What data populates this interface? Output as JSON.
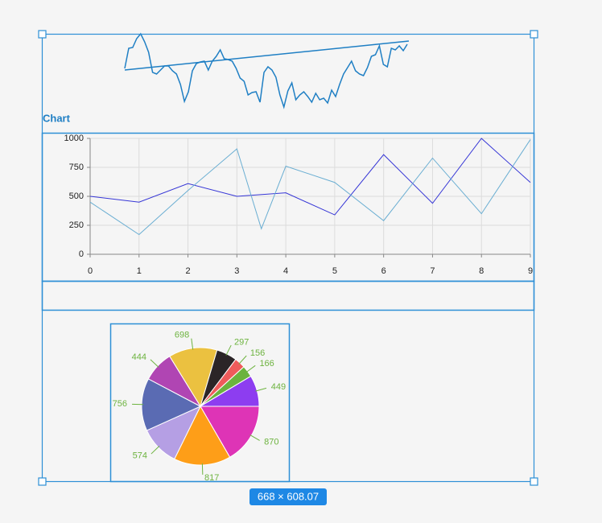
{
  "chart_label": "Chart",
  "size_badge": "668 × 608.07",
  "chart_data": [
    {
      "type": "sparkline",
      "color": "#1f7fc4",
      "ylim": [
        0,
        100
      ],
      "values": [
        55,
        80,
        81,
        92,
        98,
        88,
        75,
        50,
        48,
        53,
        58,
        58,
        52,
        48,
        35,
        14,
        26,
        52,
        61,
        63,
        64,
        53,
        64,
        70,
        78,
        67,
        66,
        64,
        55,
        43,
        39,
        22,
        25,
        26,
        13,
        50,
        57,
        53,
        44,
        22,
        7,
        27,
        37,
        16,
        22,
        26,
        20,
        13,
        24,
        16,
        18,
        12,
        28,
        20,
        35,
        48,
        56,
        64,
        52,
        48,
        46,
        56,
        70,
        72,
        83,
        60,
        57,
        80,
        78,
        83,
        77,
        85
      ],
      "trend": [
        53,
        89
      ]
    },
    {
      "type": "line",
      "xlim": [
        0,
        9
      ],
      "ylim": [
        0,
        1000
      ],
      "xticks": [
        0,
        1,
        2,
        3,
        4,
        5,
        6,
        7,
        8,
        9
      ],
      "yticks": [
        0,
        250,
        500,
        750,
        1000
      ],
      "grid": true,
      "series": [
        {
          "color": "#3535d6",
          "x": [
            0,
            1,
            2,
            3,
            4,
            5,
            6,
            7,
            8,
            9
          ],
          "values": [
            500,
            450,
            610,
            500,
            530,
            340,
            860,
            440,
            1000,
            620
          ]
        },
        {
          "color": "#6aaed2",
          "x": [
            0,
            1,
            2,
            3,
            3.5,
            4,
            5,
            6,
            7,
            8,
            9
          ],
          "values": [
            450,
            170,
            550,
            910,
            220,
            760,
            620,
            290,
            830,
            350,
            990
          ]
        }
      ]
    },
    {
      "type": "pie",
      "label_color": "#6db33f",
      "values": [
        698,
        297,
        156,
        166,
        449,
        870,
        817,
        574,
        756,
        444
      ],
      "colors": [
        "#ebc140",
        "#2b2527",
        "#ef5b5b",
        "#6bb33e",
        "#8d3df0",
        "#de34b6",
        "#fe9e18",
        "#b59fe4",
        "#5a6bb3",
        "#b045b3"
      ]
    }
  ]
}
